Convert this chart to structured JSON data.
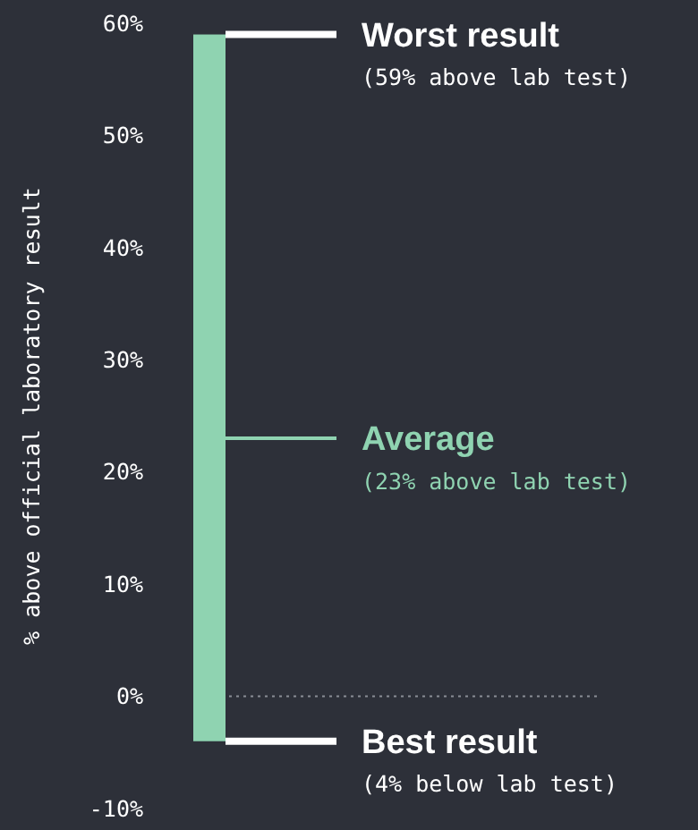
{
  "chart_data": {
    "type": "bar",
    "categories": [
      null
    ],
    "base": [
      -4
    ],
    "values": [
      63
    ],
    "color": "#8fd3b1",
    "ylabel": "% above official laboratory result",
    "ylim": [
      -10,
      60
    ],
    "yticks": [
      {
        "value": -10,
        "label": "-10%"
      },
      {
        "value": 0,
        "label": "0%"
      },
      {
        "value": 10,
        "label": "10%"
      },
      {
        "value": 20,
        "label": "20%"
      },
      {
        "value": 30,
        "label": "30%"
      },
      {
        "value": 40,
        "label": "40%"
      },
      {
        "value": 50,
        "label": "50%"
      },
      {
        "value": 60,
        "label": "60%"
      }
    ],
    "grid": false,
    "ref_lines": [
      {
        "axis": "y",
        "value": 59,
        "label": "Worst result",
        "color": "#ffffff",
        "line_style": "solid"
      },
      {
        "axis": "y",
        "value": 23,
        "label": "Average",
        "color": "#8fd3b1",
        "line_style": "solid"
      },
      {
        "axis": "y",
        "value": -4,
        "label": "Best result",
        "color": "#ffffff",
        "line_style": "solid"
      },
      {
        "axis": "y",
        "value": 0,
        "label": null,
        "color": "#8a8d96",
        "line_style": "dotted"
      }
    ],
    "annotations": [
      "(59% above lab test)",
      "(23% above lab test)",
      "(4% below lab test)"
    ]
  }
}
